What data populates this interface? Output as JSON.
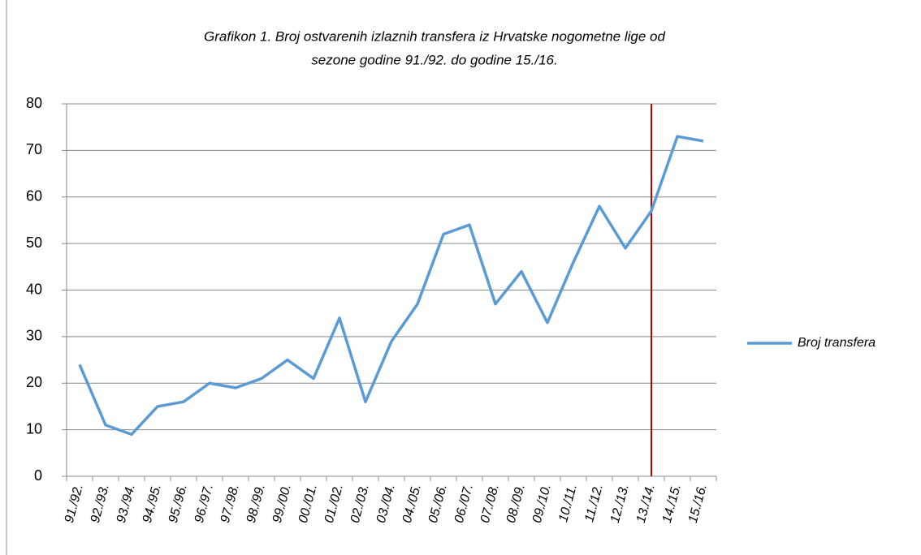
{
  "chart_data": {
    "type": "line",
    "title": [
      "Grafikon 1. Broj ostvarenih izlaznih transfera  iz Hrvatske nogometne lige od",
      "sezone godine 91./92. do godine 15./16."
    ],
    "categories": [
      "91./92.",
      "92./93.",
      "93./94.",
      "94./95.",
      "95./96.",
      "96./97.",
      "97./98.",
      "98./99.",
      "99./00.",
      "00./01.",
      "01./02.",
      "02./03.",
      "03./04.",
      "04./05.",
      "05./06.",
      "06./07.",
      "07./08.",
      "08./09.",
      "09./10.",
      "10./11.",
      "11./12.",
      "12./13.",
      "13./14.",
      "14./15.",
      "15./16."
    ],
    "series": [
      {
        "name": "Broj transfera",
        "color": "#5b9bd5",
        "values": [
          24,
          11,
          9,
          15,
          16,
          20,
          19,
          21,
          25,
          21,
          34,
          16,
          29,
          37,
          52,
          54,
          37,
          44,
          33,
          46,
          58,
          49,
          57,
          73,
          72
        ]
      }
    ],
    "ylim": [
      0,
      80
    ],
    "yticks": [
      0,
      10,
      20,
      30,
      40,
      50,
      60,
      70,
      80
    ],
    "grid": true,
    "legend": "right",
    "vline_category": "13./14.",
    "vline_color": "#c00000"
  }
}
